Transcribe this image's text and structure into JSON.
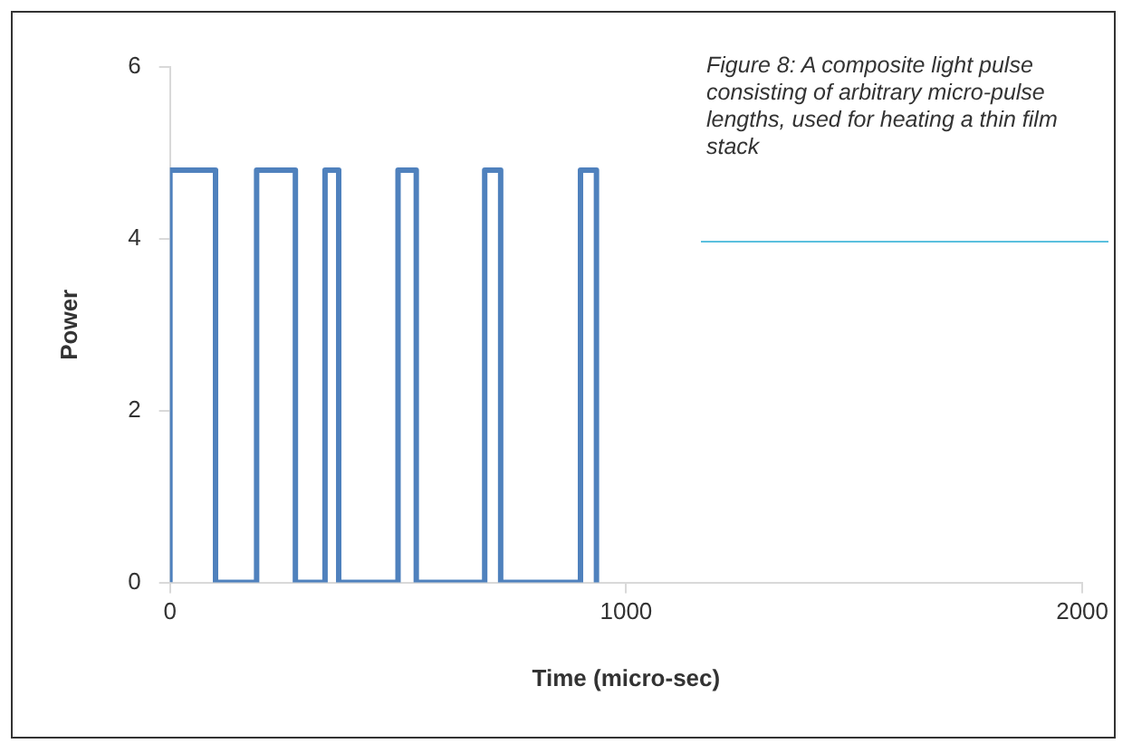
{
  "chart_data": {
    "type": "line",
    "xlabel": "Time (micro-sec)",
    "ylabel": "Power",
    "annotations": [
      "Figure 8: A composite light pulse consisting of arbitrary micro-pulse lengths, used for heating a thin film stack"
    ],
    "series": [
      {
        "color": "#4f81bd",
        "x": [
          0,
          0,
          100,
          100,
          190,
          190,
          275,
          275,
          340,
          340,
          370,
          370,
          500,
          500,
          540,
          540,
          690,
          690,
          725,
          725,
          900,
          900,
          935,
          935
        ],
        "values": [
          0,
          4.8,
          4.8,
          0,
          0,
          4.8,
          4.8,
          0,
          0,
          4.8,
          4.8,
          0,
          0,
          4.8,
          4.8,
          0,
          0,
          4.8,
          4.8,
          0,
          0,
          4.8,
          4.8,
          0
        ]
      }
    ],
    "xlim": [
      0,
      2000
    ],
    "xticks": [
      0,
      1000,
      2000
    ],
    "ylim": [
      0,
      6
    ],
    "yticks": [
      0,
      2,
      4,
      6
    ],
    "grid": false,
    "legend": false,
    "marker": "none",
    "line_style": "solid"
  }
}
